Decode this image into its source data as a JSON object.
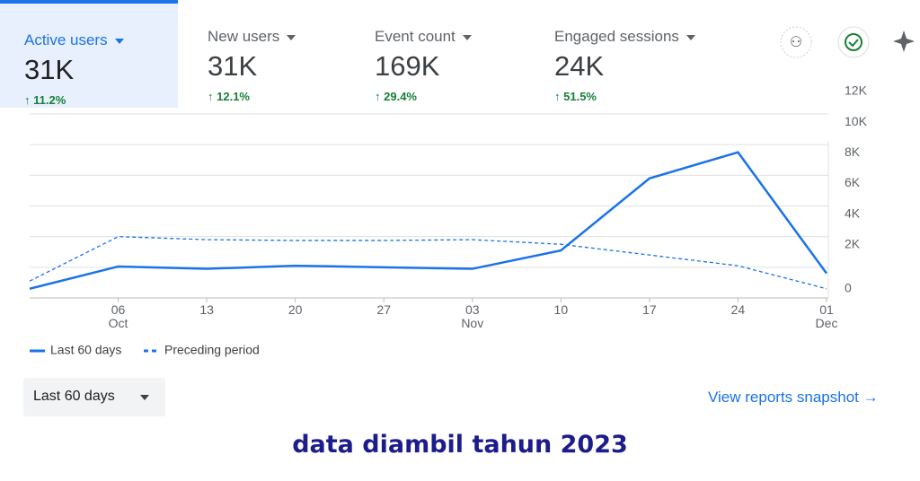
{
  "metrics": [
    {
      "label": "Active users",
      "value": "31K",
      "change": "11.2%"
    },
    {
      "label": "New users",
      "value": "31K",
      "change": "12.1%"
    },
    {
      "label": "Event count",
      "value": "169K",
      "change": "29.4%"
    },
    {
      "label": "Engaged sessions",
      "value": "24K",
      "change": "51.5%"
    }
  ],
  "chart_data": {
    "type": "line",
    "categories": [
      null,
      "06 Oct",
      "13",
      "20",
      "27",
      "03 Nov",
      "10",
      "17",
      "24",
      "01 Dec"
    ],
    "series": [
      {
        "name": "Last 60 days",
        "color": "#1a73e8",
        "dash": false,
        "values": [
          600,
          2050,
          1900,
          2100,
          2000,
          1900,
          3100,
          7800,
          9500,
          1600
        ]
      },
      {
        "name": "Preceding period",
        "color": "#1a73e8",
        "dash": true,
        "values": [
          1100,
          4000,
          3800,
          3750,
          3750,
          3800,
          3500,
          2800,
          2100,
          600
        ]
      }
    ],
    "ylim": [
      0,
      12000
    ],
    "yticks": [
      0,
      {
        "value": 2000,
        "label": "2K"
      },
      {
        "value": 4000,
        "label": "4K"
      },
      {
        "value": 6000,
        "label": "6K"
      },
      {
        "value": 8000,
        "label": "8K"
      },
      {
        "value": 10000,
        "label": "10K"
      },
      {
        "value": 12000,
        "label": "12K"
      }
    ],
    "grid": true
  },
  "date_range": "Last 60 days",
  "link": "View reports snapshot",
  "caption": "data diambil tahun 2023"
}
